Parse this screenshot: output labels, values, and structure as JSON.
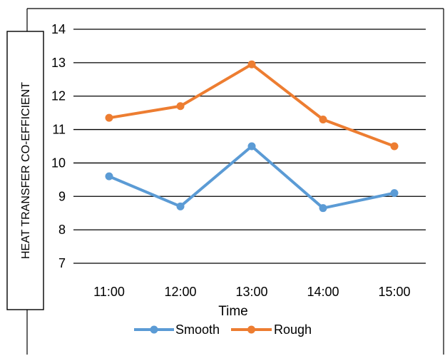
{
  "chart_data": {
    "type": "line",
    "title": "",
    "xlabel": "Time",
    "ylabel": "HEAT TRANSFER CO-EFFICIENT",
    "categories": [
      "11:00",
      "12:00",
      "13:00",
      "14:00",
      "15:00"
    ],
    "y_tick_labels": [
      "7",
      "8",
      "9",
      "10",
      "11",
      "12",
      "13",
      "14"
    ],
    "ylim": [
      7,
      14
    ],
    "grid": true,
    "legend_position": "bottom",
    "series": [
      {
        "name": "Smooth",
        "color": "#5B9BD5",
        "values": [
          9.6,
          8.7,
          10.5,
          8.65,
          9.1
        ]
      },
      {
        "name": "Rough",
        "color": "#ED7D31",
        "values": [
          11.35,
          11.7,
          12.95,
          11.3,
          10.5
        ]
      }
    ]
  }
}
